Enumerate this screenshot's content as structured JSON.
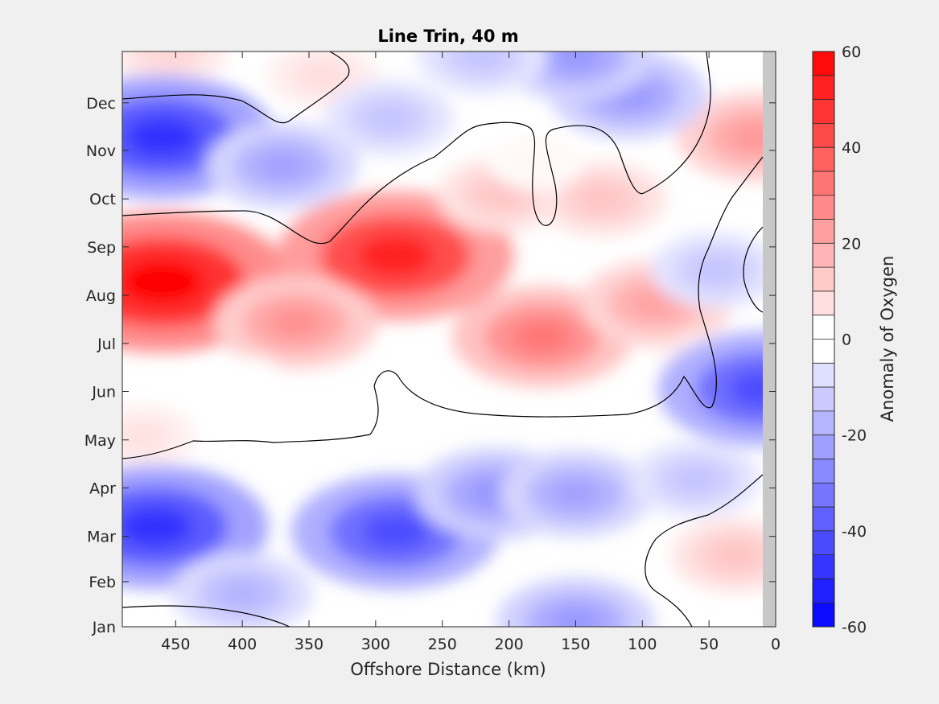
{
  "chart_data": {
    "type": "heatmap",
    "title": "Line Trin, 40 m",
    "xlabel": "Offshore Distance (km)",
    "ylabel": "",
    "colorbar_label": "Anomaly of Oxygen",
    "xlim": [
      490,
      0
    ],
    "x_reversed": true,
    "x_ticks": [
      450,
      400,
      350,
      300,
      250,
      200,
      150,
      100,
      50,
      0
    ],
    "x_tick_labels": [
      "450",
      "400",
      "350",
      "300",
      "250",
      "200",
      "150",
      "100",
      "50",
      "0"
    ],
    "ylim": [
      0.5,
      12.6
    ],
    "y_ticks": [
      0.5,
      1.45,
      2.4,
      3.42,
      4.43,
      5.45,
      6.46,
      7.47,
      8.49,
      9.5,
      10.52,
      11.52
    ],
    "y_tick_labels": [
      "Jan",
      "Feb",
      "Mar",
      "Apr",
      "May",
      "Jun",
      "Jul",
      "Aug",
      "Sep",
      "Oct",
      "Nov",
      "Dec"
    ],
    "colorbar_range": [
      -60,
      60
    ],
    "colorbar_step": 5,
    "colorbar_ticks": [
      -60,
      -40,
      -20,
      0,
      20,
      40,
      60
    ],
    "colorbar_tick_labels": [
      "-60",
      "-40",
      "-20",
      "0",
      "20",
      "40",
      "60"
    ],
    "colormap": {
      "negative": "#0000ff",
      "zero": "#ffffff",
      "positive": "#ff0000"
    },
    "data_coverage_limit_km": 10,
    "zero_contour": true,
    "grid": false,
    "anomaly_features": [
      {
        "x": 460,
        "y": 7.75,
        "value": 60
      },
      {
        "x": 285,
        "y": 8.3,
        "value": 52
      },
      {
        "x": 175,
        "y": 6.6,
        "value": 32
      },
      {
        "x": 360,
        "y": 6.9,
        "value": 26
      },
      {
        "x": 90,
        "y": 7.3,
        "value": 22
      },
      {
        "x": 15,
        "y": 10.8,
        "value": 24
      },
      {
        "x": 205,
        "y": 9.6,
        "value": 14
      },
      {
        "x": 130,
        "y": 9.5,
        "value": 14
      },
      {
        "x": 455,
        "y": 12.6,
        "value": 10
      },
      {
        "x": 340,
        "y": 12.1,
        "value": 8
      },
      {
        "x": 475,
        "y": 4.5,
        "value": 7
      },
      {
        "x": 30,
        "y": 2.0,
        "value": 14
      },
      {
        "x": 45,
        "y": 6.0,
        "value": 7
      },
      {
        "x": 460,
        "y": 10.8,
        "value": -48
      },
      {
        "x": 465,
        "y": 2.6,
        "value": -48
      },
      {
        "x": 285,
        "y": 2.5,
        "value": -42
      },
      {
        "x": 10,
        "y": 5.5,
        "value": -42
      },
      {
        "x": 210,
        "y": 3.3,
        "value": -25
      },
      {
        "x": 150,
        "y": 3.3,
        "value": -22
      },
      {
        "x": 370,
        "y": 10.2,
        "value": -22
      },
      {
        "x": 290,
        "y": 11.2,
        "value": -14
      },
      {
        "x": 110,
        "y": 11.7,
        "value": -24
      },
      {
        "x": 150,
        "y": 12.5,
        "value": -24
      },
      {
        "x": 220,
        "y": 12.5,
        "value": -14
      },
      {
        "x": 150,
        "y": 0.6,
        "value": -24
      },
      {
        "x": 60,
        "y": 3.6,
        "value": -14
      },
      {
        "x": 45,
        "y": 8.0,
        "value": -14
      },
      {
        "x": 400,
        "y": 1.2,
        "value": -18
      },
      {
        "x": 400,
        "y": 5.6,
        "value": 0
      },
      {
        "x": 180,
        "y": 10.3,
        "value": 2
      }
    ]
  }
}
